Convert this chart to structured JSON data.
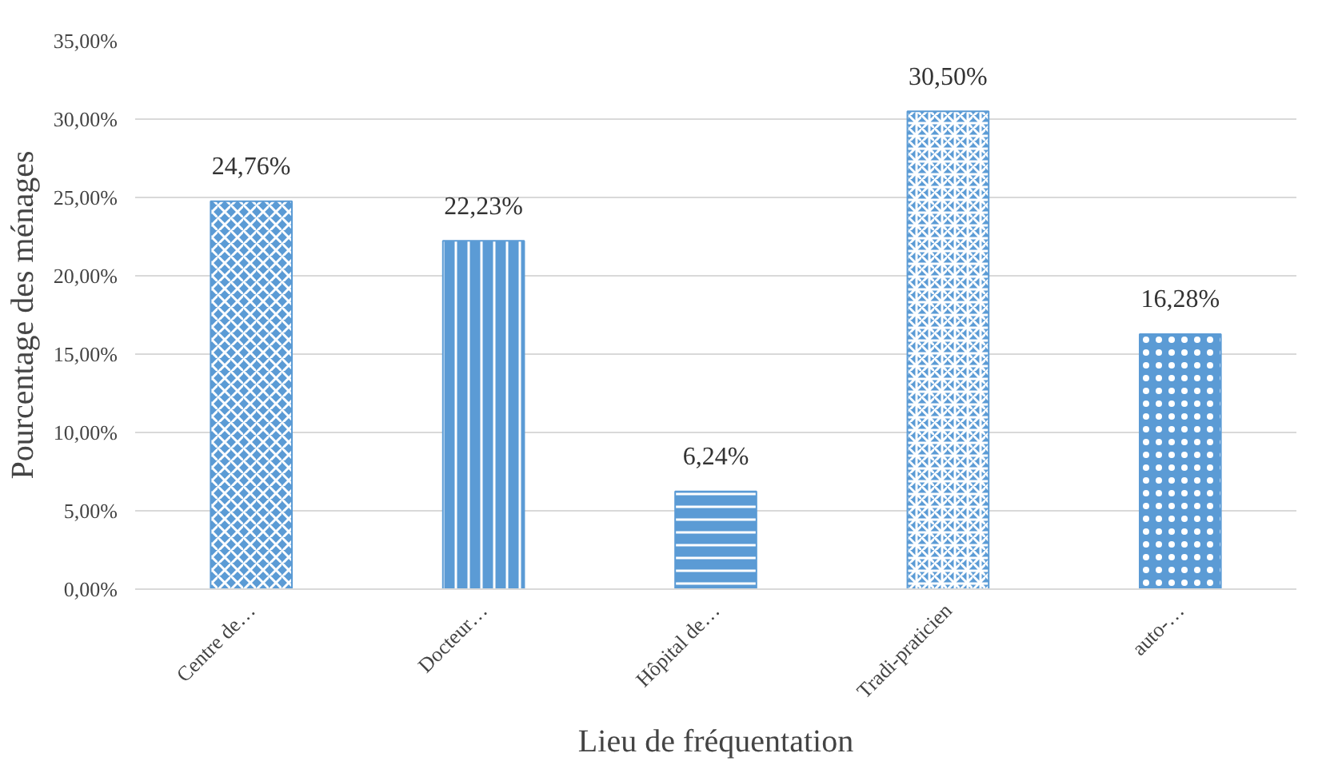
{
  "chart_data": {
    "type": "bar",
    "xlabel": "Lieu de fréquentation",
    "ylabel": "Pourcentage des ménages",
    "categories": [
      "Centre de…",
      "Docteur…",
      "Hôpital de…",
      "Tradi-praticien",
      "auto-…"
    ],
    "values": [
      24.76,
      22.23,
      6.24,
      30.5,
      16.28
    ],
    "value_labels": [
      "24,76%",
      "22,23%",
      "6,24%",
      "30,50%",
      "16,28%"
    ],
    "color": "#5b9bd5",
    "ylim": [
      0,
      35
    ],
    "yticks": [
      {
        "value": 0,
        "label": "0,00%"
      },
      {
        "value": 5,
        "label": "5,00%"
      },
      {
        "value": 10,
        "label": "10,00%"
      },
      {
        "value": 15,
        "label": "15,00%"
      },
      {
        "value": 20,
        "label": "20,00%"
      },
      {
        "value": 25,
        "label": "25,00%"
      },
      {
        "value": 30,
        "label": "30,00%"
      },
      {
        "value": 35,
        "label": "35,00%"
      }
    ],
    "grid": "y"
  }
}
